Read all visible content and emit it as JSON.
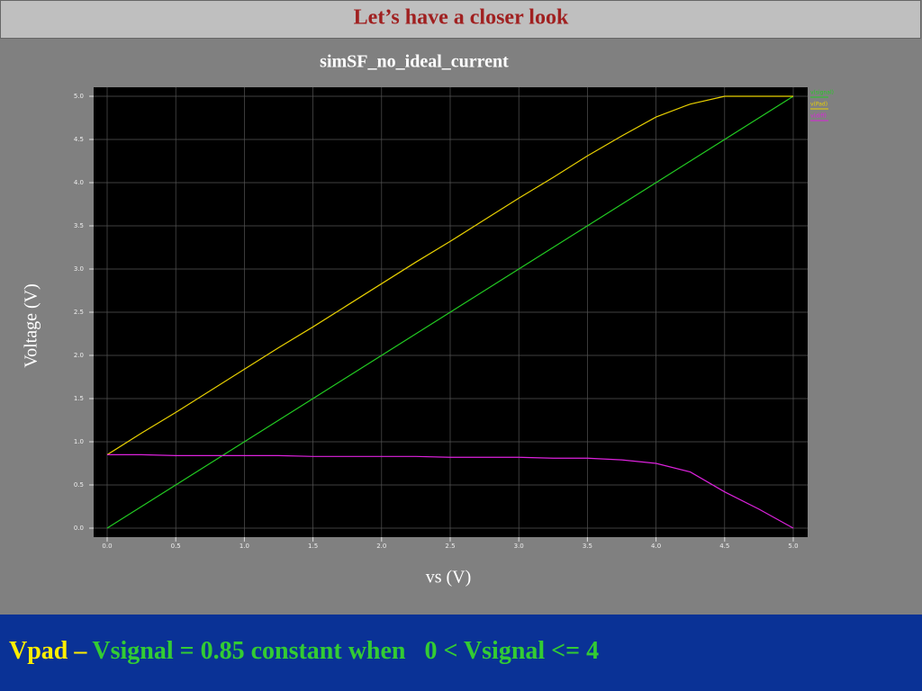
{
  "slide": {
    "title": "Let’s have  a closer look"
  },
  "chart_data": {
    "type": "line",
    "title": "simSF_no_ideal_current",
    "x_label": "vs (V)",
    "y_label": "Voltage (V)",
    "x": [
      0,
      0.25,
      0.5,
      0.75,
      1,
      1.25,
      1.5,
      1.75,
      2,
      2.25,
      2.5,
      2.75,
      3,
      3.25,
      3.5,
      3.75,
      4,
      4.25,
      4.5,
      4.75,
      5
    ],
    "series": [
      {
        "name": "v(signal)",
        "color": "#22cc22",
        "values": [
          0,
          0.25,
          0.5,
          0.75,
          1,
          1.25,
          1.5,
          1.75,
          2,
          2.25,
          2.5,
          2.75,
          3,
          3.25,
          3.5,
          3.75,
          4,
          4.25,
          4.5,
          4.75,
          5
        ]
      },
      {
        "name": "v(Pad)",
        "color": "#e8d000",
        "values": [
          0.85,
          1.1,
          1.34,
          1.59,
          1.84,
          2.09,
          2.33,
          2.58,
          2.83,
          3.08,
          3.32,
          3.57,
          3.82,
          4.06,
          4.31,
          4.54,
          4.76,
          4.91,
          5,
          5,
          5
        ]
      },
      {
        "name": "v(diff)",
        "color": "#dd22dd",
        "values": [
          0.85,
          0.85,
          0.84,
          0.84,
          0.84,
          0.84,
          0.83,
          0.83,
          0.83,
          0.83,
          0.82,
          0.82,
          0.82,
          0.81,
          0.81,
          0.79,
          0.75,
          0.65,
          0.42,
          0.22,
          0
        ]
      }
    ],
    "xlim": [
      0,
      5
    ],
    "ylim": [
      0,
      5
    ],
    "xticks": [
      {
        "value": 0,
        "label": "0.0"
      },
      {
        "value": 0.5,
        "label": "0.5"
      },
      {
        "value": 1,
        "label": "1.0"
      },
      {
        "value": 1.5,
        "label": "1.5"
      },
      {
        "value": 2,
        "label": "2.0"
      },
      {
        "value": 2.5,
        "label": "2.5"
      },
      {
        "value": 3,
        "label": "3.0"
      },
      {
        "value": 3.5,
        "label": "3.5"
      },
      {
        "value": 4,
        "label": "4.0"
      },
      {
        "value": 4.5,
        "label": "4.5"
      },
      {
        "value": 5,
        "label": "5.0"
      }
    ],
    "yticks": [
      {
        "value": 0,
        "label": "0.0"
      },
      {
        "value": 0.5,
        "label": "0.5"
      },
      {
        "value": 1,
        "label": "1.0"
      },
      {
        "value": 1.5,
        "label": "1.5"
      },
      {
        "value": 2,
        "label": "2.0"
      },
      {
        "value": 2.5,
        "label": "2.5"
      },
      {
        "value": 3,
        "label": "3.0"
      },
      {
        "value": 3.5,
        "label": "3.5"
      },
      {
        "value": 4,
        "label": "4.0"
      },
      {
        "value": 4.5,
        "label": "4.5"
      },
      {
        "value": 5,
        "label": "5.0"
      }
    ],
    "grid": true
  },
  "footer": {
    "prefix": "Vpad –",
    "text": "Vsignal = 0.85 constant when   0 < Vsignal <= 4"
  }
}
